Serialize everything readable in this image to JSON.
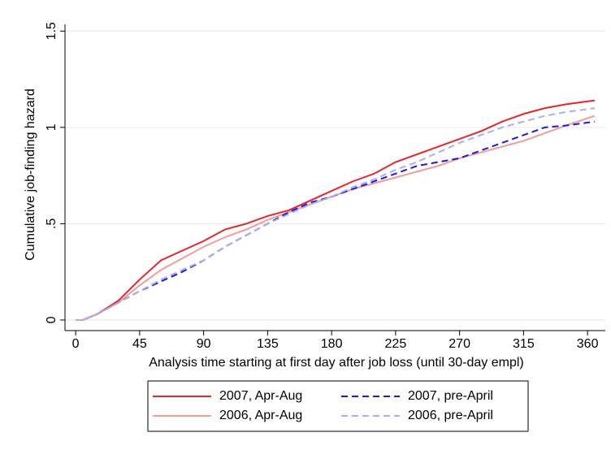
{
  "chart_data": {
    "type": "line",
    "xlabel": "Analysis time starting at first day after job loss (until 30-day empl)",
    "ylabel": "Cumulative job-finding hazard",
    "x": [
      0,
      5,
      15,
      30,
      45,
      60,
      75,
      90,
      105,
      120,
      135,
      150,
      165,
      180,
      195,
      210,
      225,
      240,
      255,
      270,
      285,
      300,
      315,
      330,
      345,
      365
    ],
    "series": [
      {
        "name": "2007, Apr-Aug",
        "color": "#e3262b",
        "dash": false,
        "values": [
          0,
          0,
          0.03,
          0.1,
          0.21,
          0.31,
          0.36,
          0.41,
          0.47,
          0.5,
          0.54,
          0.57,
          0.62,
          0.67,
          0.72,
          0.76,
          0.82,
          0.86,
          0.9,
          0.94,
          0.98,
          1.03,
          1.07,
          1.1,
          1.12,
          1.14
        ]
      },
      {
        "name": "2006, Apr-Aug",
        "color": "#f29b9b",
        "dash": false,
        "values": [
          0,
          0,
          0.03,
          0.09,
          0.18,
          0.26,
          0.32,
          0.38,
          0.43,
          0.47,
          0.52,
          0.56,
          0.6,
          0.64,
          0.68,
          0.71,
          0.74,
          0.77,
          0.8,
          0.84,
          0.87,
          0.9,
          0.93,
          0.97,
          1.01,
          1.06
        ]
      },
      {
        "name": "2007, pre-April",
        "color": "#1c1cd6",
        "dash": true,
        "values": [
          0,
          0,
          0.03,
          0.09,
          0.15,
          0.2,
          0.25,
          0.31,
          0.38,
          0.44,
          0.5,
          0.56,
          0.61,
          0.64,
          0.68,
          0.72,
          0.76,
          0.8,
          0.82,
          0.84,
          0.88,
          0.92,
          0.96,
          1.0,
          1.01,
          1.03
        ]
      },
      {
        "name": "2006, pre-April",
        "color": "#a9aef0",
        "dash": true,
        "values": [
          0,
          0,
          0.03,
          0.09,
          0.15,
          0.21,
          0.26,
          0.31,
          0.38,
          0.44,
          0.5,
          0.55,
          0.6,
          0.64,
          0.69,
          0.73,
          0.78,
          0.82,
          0.87,
          0.92,
          0.96,
          1.0,
          1.03,
          1.06,
          1.08,
          1.1
        ]
      }
    ],
    "xlim": [
      -7.5,
      372.5
    ],
    "xticks": [
      0,
      45,
      90,
      135,
      180,
      225,
      270,
      315,
      360
    ],
    "ylim": [
      -0.055,
      1.535
    ],
    "yticks": [
      0,
      {
        "value": 0.5,
        "label": ".5"
      },
      1,
      1.5
    ],
    "grid": true,
    "legend": "bottom"
  }
}
